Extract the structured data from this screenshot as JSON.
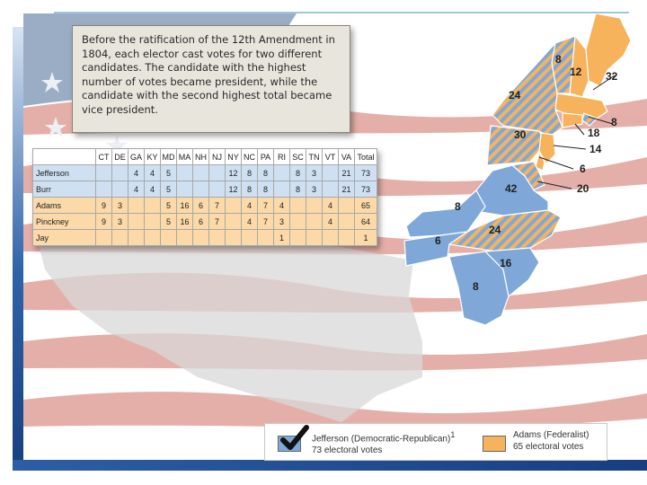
{
  "caption": "Before the ratification of the 12th Amendment in 1804, each elector cast votes for two different candidates.  The candidate with the highest number of votes became president, while the candidate with the second highest total became vice president.",
  "table": {
    "columns": [
      "",
      "CT",
      "DE",
      "GA",
      "KY",
      "MD",
      "MA",
      "NH",
      "NJ",
      "NY",
      "NC",
      "PA",
      "RI",
      "SC",
      "TN",
      "VT",
      "VA",
      "Total"
    ],
    "rows": [
      {
        "party": "dr",
        "cells": [
          "Jefferson",
          "",
          "",
          "4",
          "4",
          "5",
          "",
          "",
          "",
          "12",
          "8",
          "8",
          "",
          "8",
          "3",
          "",
          "21",
          "73"
        ]
      },
      {
        "party": "dr",
        "cells": [
          "Burr",
          "",
          "",
          "4",
          "4",
          "5",
          "",
          "",
          "",
          "12",
          "8",
          "8",
          "",
          "8",
          "3",
          "",
          "21",
          "73"
        ]
      },
      {
        "party": "fed",
        "cells": [
          "Adams",
          "9",
          "3",
          "",
          "",
          "5",
          "16",
          "6",
          "7",
          "",
          "4",
          "7",
          "4",
          "",
          "",
          "4",
          "",
          "65"
        ]
      },
      {
        "party": "fed",
        "cells": [
          "Pinckney",
          "9",
          "3",
          "",
          "",
          "5",
          "16",
          "6",
          "7",
          "",
          "4",
          "7",
          "3",
          "",
          "",
          "4",
          "",
          "64"
        ]
      },
      {
        "party": "fed",
        "cells": [
          "Jay",
          "",
          "",
          "",
          "",
          "",
          "",
          "",
          "",
          "",
          "",
          "",
          "1",
          "",
          "",
          "",
          "",
          "1"
        ]
      }
    ]
  },
  "map_labels": [
    "8",
    "12",
    "32",
    "8",
    "24",
    "18",
    "30",
    "14",
    "6",
    "42",
    "20",
    "8",
    "24",
    "6",
    "16",
    "8"
  ],
  "legend": {
    "jefferson_name": "Jefferson (Democratic-Republican)",
    "jefferson_note": "1",
    "jefferson_votes": "73 electoral votes",
    "adams_name": "Adams (Federalist)",
    "adams_votes": "65 electoral votes"
  },
  "colors": {
    "democratic_republican": "#7fa8d8",
    "federalist": "#f6b35c",
    "flag_red": "#e1a29b",
    "flag_blue": "#8a9fbc"
  },
  "icons": [
    "checkmark-icon",
    "star-icon"
  ]
}
